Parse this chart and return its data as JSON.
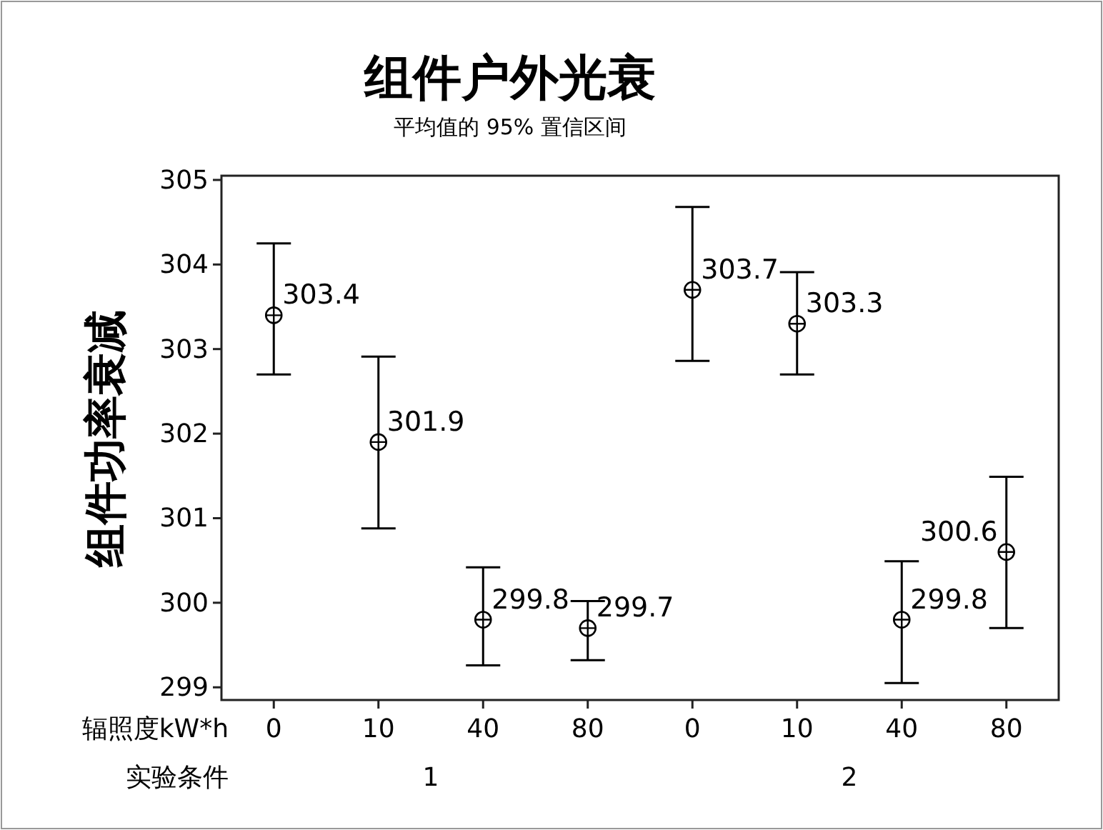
{
  "chart_data": {
    "type": "scatter",
    "title": "组件户外光衰",
    "subtitle": "平均值的 95% 置信区间",
    "ylabel": "组件功率衰减",
    "categories": [
      "0",
      "10",
      "40",
      "80",
      "0",
      "10",
      "40",
      "80"
    ],
    "values": [
      303.4,
      301.9,
      299.8,
      299.7,
      303.7,
      303.3,
      299.8,
      300.6
    ],
    "errors": [
      [
        302.7,
        304.25
      ],
      [
        300.88,
        302.91
      ],
      [
        299.26,
        300.42
      ],
      [
        299.32,
        300.02
      ],
      [
        302.86,
        304.68
      ],
      [
        302.7,
        303.91
      ],
      [
        299.05,
        300.49
      ],
      [
        299.7,
        301.49
      ]
    ],
    "color": "#000000",
    "marker": "circle",
    "data_labels": true,
    "ylim": [
      298.85,
      305.05
    ],
    "yticks": [
      299,
      300,
      301,
      302,
      303,
      304,
      305
    ],
    "annotations": [
      "辐照度kW*h",
      "实验条件",
      "1",
      "2"
    ]
  }
}
